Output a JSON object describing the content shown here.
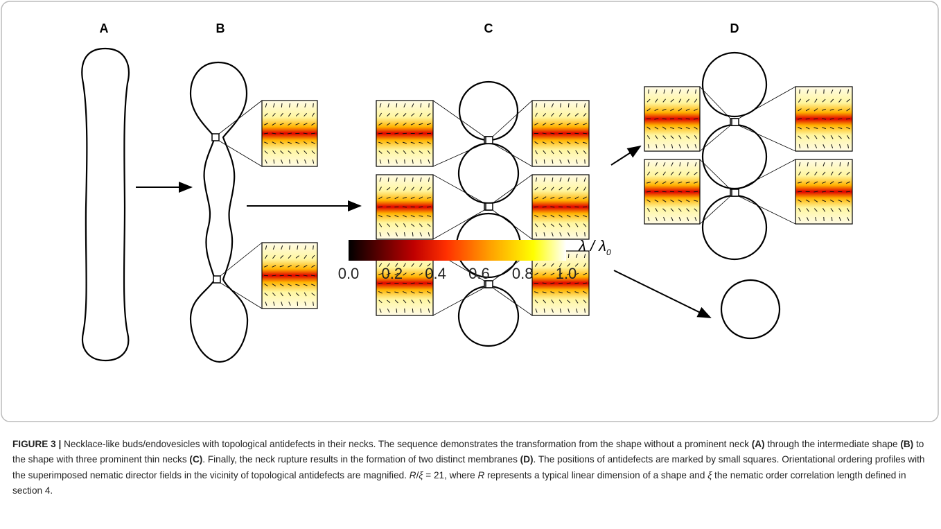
{
  "panels": [
    "A",
    "B",
    "C",
    "D"
  ],
  "colorbar": {
    "label": "λ / λ",
    "label_sub": "0",
    "ticks": [
      {
        "value": 0,
        "label": "0.0"
      },
      {
        "value": 0.2,
        "label": "0.2"
      },
      {
        "value": 0.4,
        "label": "0.4"
      },
      {
        "value": 0.6,
        "label": "0.6"
      },
      {
        "value": 0.8,
        "label": "0.8"
      },
      {
        "value": 1,
        "label": "1.0"
      }
    ],
    "lim": [
      0,
      1
    ]
  },
  "caption": {
    "parts": [
      "FIGURE 3 |",
      "Necklace-like buds/endovesicles with topological antidefects in their necks. The sequence demonstrates the transformation from the shape without a prominent neck",
      "(A)",
      "through the intermediate shape",
      "(B)",
      "to the shape with three prominent thin necks",
      "(C)",
      ". Finally, the neck rupture results in the formation of two distinct membranes",
      "(D)",
      ". The positions of antidefects are marked by small squares. Orientational ordering profiles with the superimposed nematic director fields in the vicinity of topological antidefects are magnified.",
      "R",
      "/",
      "ξ",
      "= 21, where",
      "R",
      "represents a typical linear dimension of a shape and",
      "ξ",
      "the nematic order correlation length defined in section 4."
    ]
  }
}
